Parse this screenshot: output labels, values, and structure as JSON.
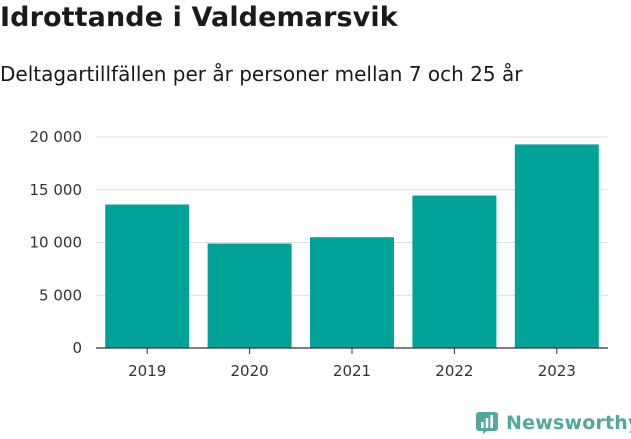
{
  "header": {
    "title": "Idrottande i Valdemarsvik",
    "subtitle": "Deltagartillfällen per år personer mellan 7 och 25 år"
  },
  "brand": {
    "name": "Newsworthy",
    "color": "#52a89b",
    "icon": "newsworthy-bar-chart-icon"
  },
  "chart_data": {
    "type": "bar",
    "title": "Idrottande i Valdemarsvik",
    "subtitle": "Deltagartillfällen per år personer mellan 7 och 25 år",
    "xlabel": "",
    "ylabel": "",
    "categories": [
      "2019",
      "2020",
      "2021",
      "2022",
      "2023"
    ],
    "values": [
      13600,
      9900,
      10500,
      14450,
      19300
    ],
    "ylim": [
      0,
      20000
    ],
    "yticks": [
      0,
      5000,
      10000,
      15000,
      20000
    ],
    "ytick_labels": [
      "0",
      "5 000",
      "10 000",
      "15 000",
      "20 000"
    ],
    "grid": true,
    "bar_color": "#00a398"
  }
}
